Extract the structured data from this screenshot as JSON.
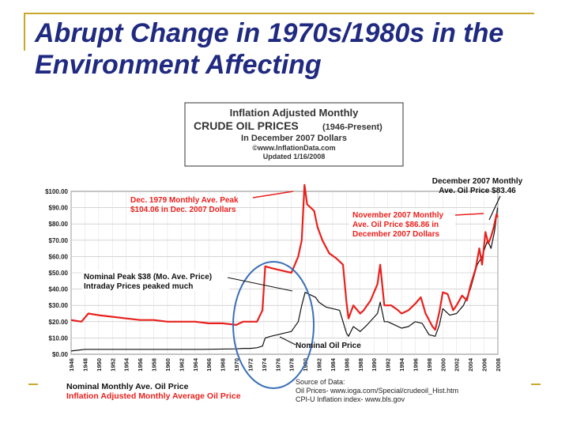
{
  "slide": {
    "title": "Abrupt Change in 1970s/1980s in the Environment Affecting",
    "accent_color": "#c9a92d",
    "title_color": "#1f2a80"
  },
  "chart_data": {
    "type": "line",
    "header": {
      "line1": "Inflation Adjusted Monthly",
      "line2": "CRUDE OIL PRICES",
      "line2b": "(1946-Present)",
      "line3": "In December 2007 Dollars",
      "line4": "©www.InflationData.com",
      "line5": "Updated 1/16/2008"
    },
    "ylim": [
      0,
      100
    ],
    "yticks": [
      "$0.00",
      "$10.00",
      "$20.00",
      "$30.00",
      "$40.00",
      "$50.00",
      "$60.00",
      "$70.00",
      "$80.00",
      "$90.00",
      "$100.00"
    ],
    "xlim": [
      1946,
      2008
    ],
    "xticks": [
      "1946",
      "1948",
      "1950",
      "1952",
      "1954",
      "1956",
      "1958",
      "1960",
      "1962",
      "1964",
      "1966",
      "1968",
      "1970",
      "1972",
      "1974",
      "1976",
      "1978",
      "1980",
      "1982",
      "1984",
      "1986",
      "1988",
      "1990",
      "1992",
      "1994",
      "1996",
      "1998",
      "2000",
      "2002",
      "2004",
      "2006",
      "2008"
    ],
    "grid": true,
    "series": [
      {
        "name": "Inflation Adjusted Monthly Average Oil Price",
        "color": "#e8211d",
        "x": [
          1946,
          1947.5,
          1948.5,
          1950,
          1952,
          1954,
          1956,
          1958,
          1960,
          1962,
          1964,
          1966,
          1968,
          1970,
          1971,
          1972,
          1973,
          1973.8,
          1974.2,
          1975,
          1976,
          1977,
          1978,
          1979,
          1979.5,
          1979.9,
          1980.3,
          1980.8,
          1981.3,
          1981.8,
          1982.5,
          1983.5,
          1984.5,
          1985.5,
          1986,
          1986.3,
          1987,
          1988,
          1988.5,
          1989.5,
          1990.5,
          1990.9,
          1991.5,
          1992.5,
          1993.5,
          1994,
          1995,
          1996,
          1996.8,
          1997.5,
          1998.5,
          1998.9,
          1999.5,
          2000,
          2000.7,
          2001.5,
          2002,
          2002.8,
          2003.5,
          2004,
          2004.8,
          2005.3,
          2005.7,
          2006.2,
          2006.6,
          2007,
          2007.4,
          2007.8,
          2007.95
        ],
        "y": [
          21,
          20,
          25,
          24,
          23,
          22,
          21,
          21,
          20,
          20,
          20,
          19,
          19,
          18,
          20,
          20,
          20,
          27,
          54,
          53,
          52,
          51,
          50,
          60,
          70,
          104,
          92,
          90,
          88,
          78,
          70,
          62,
          59,
          55,
          32,
          22,
          30,
          25,
          27,
          33,
          43,
          55,
          30,
          30,
          27,
          25,
          27,
          31,
          35,
          25,
          17,
          15,
          26,
          38,
          37,
          27,
          30,
          36,
          33,
          42,
          53,
          65,
          55,
          75,
          68,
          72,
          78,
          86,
          84
        ]
      },
      {
        "name": "Nominal Monthly Ave. Oil Price",
        "color": "#111111",
        "x": [
          1946,
          1947,
          1948,
          1950,
          1955,
          1960,
          1965,
          1970,
          1971,
          1972,
          1973,
          1973.8,
          1974.2,
          1975,
          1976,
          1977,
          1978,
          1979,
          1979.5,
          1980,
          1981,
          1981.5,
          1982,
          1983,
          1984,
          1985,
          1986,
          1986.3,
          1987,
          1988,
          1989,
          1990.5,
          1990.9,
          1991.5,
          1992,
          1993,
          1994,
          1995,
          1996,
          1997,
          1998,
          1998.9,
          1999.5,
          2000,
          2001,
          2002,
          2003,
          2004,
          2005,
          2005.7,
          2006.5,
          2007,
          2007.5,
          2007.95
        ],
        "y": [
          2,
          2.5,
          3,
          3,
          3,
          3,
          3,
          3.3,
          3.6,
          3.6,
          4,
          5,
          10,
          11,
          12,
          13,
          14,
          20,
          30,
          38,
          36,
          35,
          32,
          29,
          28,
          27,
          13,
          11,
          17,
          14,
          18,
          25,
          32,
          20,
          20,
          18,
          16,
          17,
          20,
          19,
          12,
          11,
          18,
          28,
          24,
          25,
          30,
          40,
          55,
          60,
          70,
          65,
          75,
          90
        ]
      }
    ],
    "annotations": {
      "peak_1979": [
        "Dec. 1979 Monthly Ave. Peak",
        "$104.06 in Dec. 2007 Dollars"
      ],
      "nominal_peak": [
        "Nominal Peak $38 (Mo. Ave. Price)",
        "Intraday Prices peaked much"
      ],
      "nov_2007": [
        "November 2007 Monthly",
        "Ave. Oil Price $86.86 in",
        "December 2007 Dollars"
      ],
      "dec_2007": [
        "December 2007 Monthly",
        "Ave. Oil Price $83.46"
      ],
      "nominal_label": "Nominal Oil Price"
    },
    "legend": {
      "nominal": "Nominal Monthly Ave. Oil Price",
      "inflation": "Inflation Adjusted Monthly Average Oil Price"
    },
    "source": {
      "line1": "Source of Data:",
      "line2": "Oil Prices-  www.ioga.com/Special/crudeoil_Hist.htm",
      "line3": "CPI-U Inflation index-  www.bls.gov"
    }
  }
}
